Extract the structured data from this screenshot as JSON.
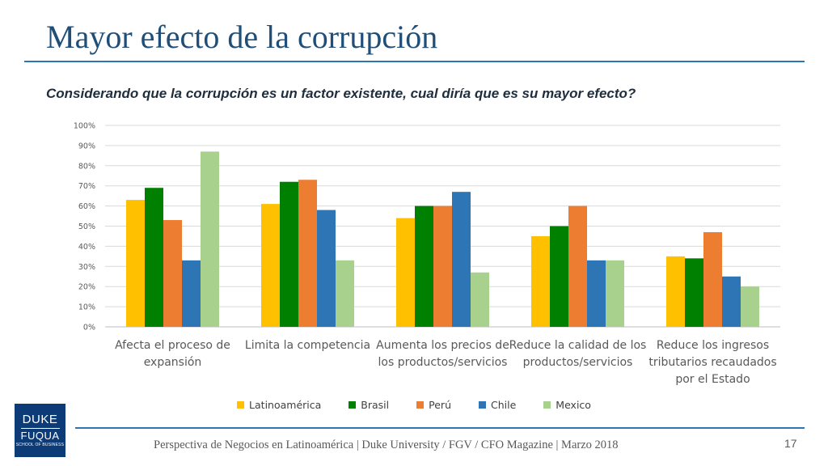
{
  "slide": {
    "title": "Mayor efecto de la corrupción",
    "subtitle": "Considerando que la corrupción es un factor existente, cual diría que es su mayor efecto?",
    "footer": "Perspectiva de Negocios en Latinoamérica | Duke University / FGV / CFO Magazine | Marzo 2018",
    "page_number": "17",
    "logo": {
      "line1": "DUKE",
      "line2": "FUQUA",
      "line3": "SCHOOL OF BUSINESS",
      "color": "#0c3b78"
    }
  },
  "chart_data": {
    "type": "bar",
    "title": "",
    "xlabel": "",
    "ylabel": "",
    "ylim": [
      0,
      100
    ],
    "y_ticks": [
      "0%",
      "10%",
      "20%",
      "30%",
      "40%",
      "50%",
      "60%",
      "70%",
      "80%",
      "90%",
      "100%"
    ],
    "grid": true,
    "legend_position": "bottom",
    "categories": [
      [
        "Afecta el proceso de",
        "expansión"
      ],
      [
        "Limita la competencia"
      ],
      [
        "Aumenta los precios de",
        "los productos/servicios"
      ],
      [
        "Reduce la calidad de los",
        "productos/servicios"
      ],
      [
        "Reduce los ingresos",
        "tributarios recaudados",
        "por el Estado"
      ]
    ],
    "series": [
      {
        "name": "Latinoamérica",
        "color": "#ffc000",
        "values": [
          63,
          61,
          54,
          45,
          35
        ]
      },
      {
        "name": "Brasil",
        "color": "#008000",
        "values": [
          69,
          72,
          60,
          50,
          34
        ]
      },
      {
        "name": "Perú",
        "color": "#ed7d31",
        "values": [
          53,
          73,
          60,
          60,
          47
        ]
      },
      {
        "name": "Chile",
        "color": "#2e75b6",
        "values": [
          33,
          58,
          67,
          33,
          25
        ]
      },
      {
        "name": "Mexico",
        "color": "#a9d18e",
        "values": [
          87,
          33,
          27,
          33,
          20
        ]
      }
    ]
  }
}
